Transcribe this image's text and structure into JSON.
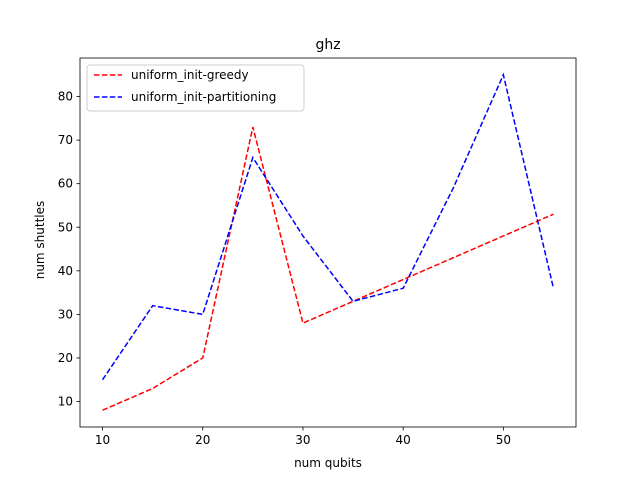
{
  "chart_data": {
    "type": "line",
    "title": "ghz",
    "xlabel": "num qubits",
    "ylabel": "num shuttles",
    "xlim": [
      7.75,
      57.25
    ],
    "ylim": [
      4.15,
      88.85
    ],
    "xticks": [
      10,
      20,
      30,
      40,
      50
    ],
    "yticks": [
      10,
      20,
      30,
      40,
      50,
      60,
      70,
      80
    ],
    "grid": false,
    "legend_position": "top-left",
    "x": [
      10,
      15,
      20,
      25,
      30,
      35,
      40,
      45,
      50,
      55
    ],
    "series": [
      {
        "name": "uniform_init-greedy",
        "color": "#ff0000",
        "linestyle": "dashed",
        "values": [
          8,
          13,
          20,
          73,
          28,
          33,
          38,
          43,
          48,
          53
        ]
      },
      {
        "name": "uniform_init-partitioning",
        "color": "#0000ff",
        "linestyle": "dashed",
        "values": [
          15,
          32,
          30,
          66,
          48,
          33,
          36,
          59,
          85,
          36
        ]
      }
    ]
  }
}
